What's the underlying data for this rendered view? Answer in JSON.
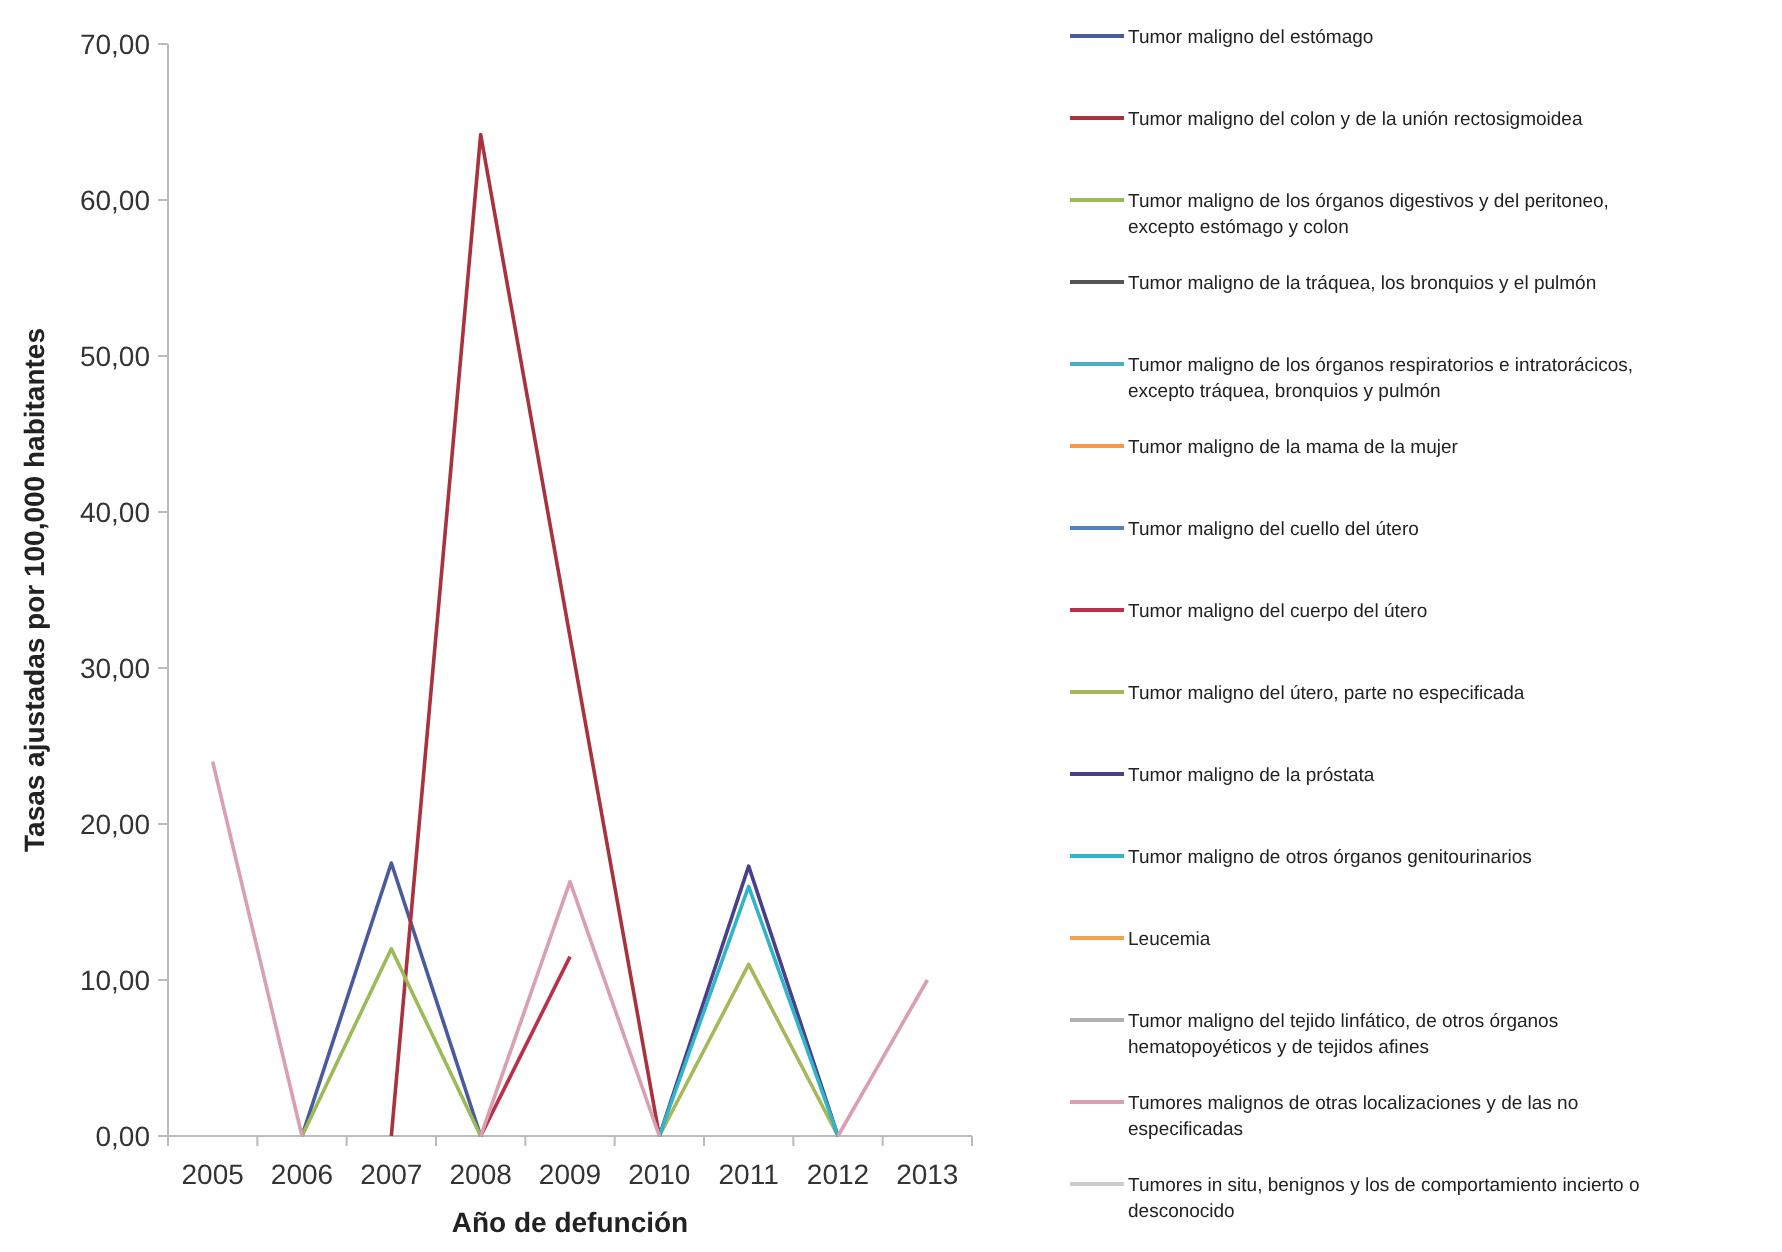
{
  "chart_data": {
    "type": "line",
    "xlabel": "Año de defunción",
    "ylabel": "Tasas ajustadas por 100,000 habitantes",
    "categories": [
      "2005",
      "2006",
      "2007",
      "2008",
      "2009",
      "2010",
      "2011",
      "2012",
      "2013"
    ],
    "ylim": [
      0,
      70
    ],
    "yticks": [
      {
        "value": 0,
        "label": "0,00"
      },
      {
        "value": 10,
        "label": "10,00"
      },
      {
        "value": 20,
        "label": "20,00"
      },
      {
        "value": 30,
        "label": "30,00"
      },
      {
        "value": 40,
        "label": "40,00"
      },
      {
        "value": 50,
        "label": "50,00"
      },
      {
        "value": 60,
        "label": "60,00"
      },
      {
        "value": 70,
        "label": "70,00"
      }
    ],
    "grid": false,
    "legend": "right",
    "marker": "none",
    "line_style": "solid",
    "series": [
      {
        "name": "Tumor maligno del estómago",
        "color": "#4a5a9c",
        "values": [
          null,
          0,
          17.5,
          0,
          null,
          null,
          null,
          null,
          null
        ]
      },
      {
        "name": "Tumor maligno del colon y de la unión rectosigmoidea",
        "color": "#a8323e",
        "values": [
          null,
          null,
          0,
          64.2,
          32,
          0,
          null,
          null,
          null
        ]
      },
      {
        "name": "Tumor maligno de los órganos digestivos y del peritoneo, excepto estómago y colon",
        "color": "#9bbb59",
        "values": [
          null,
          0,
          12,
          0,
          null,
          null,
          null,
          null,
          null
        ]
      },
      {
        "name": "Tumor maligno de la tráquea, los bronquios y el pulmón",
        "color": "#555555",
        "values": [
          null,
          null,
          null,
          null,
          null,
          null,
          null,
          null,
          null
        ]
      },
      {
        "name": "Tumor maligno de los órganos respiratorios e intratorácicos, excepto tráquea, bronquios y pulmón",
        "color": "#4bacc6",
        "values": [
          null,
          null,
          null,
          null,
          null,
          null,
          null,
          null,
          null
        ]
      },
      {
        "name": "Tumor maligno de la mama de la mujer",
        "color": "#f79646",
        "values": [
          null,
          null,
          null,
          null,
          null,
          null,
          null,
          null,
          null
        ]
      },
      {
        "name": "Tumor maligno del cuello del útero",
        "color": "#4f81bd",
        "values": [
          null,
          null,
          null,
          null,
          null,
          null,
          null,
          null,
          null
        ]
      },
      {
        "name": "Tumor maligno del cuerpo del útero",
        "color": "#b8304a",
        "values": [
          null,
          null,
          null,
          0,
          11.5,
          null,
          null,
          null,
          null
        ]
      },
      {
        "name": "Tumor maligno del útero, parte no especificada",
        "color": "#a5b85a",
        "values": [
          null,
          null,
          null,
          null,
          null,
          0,
          11,
          0,
          null
        ]
      },
      {
        "name": "Tumor maligno de la próstata",
        "color": "#4b3f8a",
        "values": [
          null,
          null,
          null,
          null,
          null,
          0,
          17.3,
          0,
          null
        ]
      },
      {
        "name": "Tumor maligno de otros órganos genitourinarios",
        "color": "#31b6c9",
        "values": [
          null,
          null,
          null,
          null,
          null,
          0,
          16,
          0,
          null
        ]
      },
      {
        "name": "Leucemia",
        "color": "#f5a050",
        "values": [
          null,
          null,
          null,
          null,
          null,
          null,
          null,
          null,
          null
        ]
      },
      {
        "name": "Tumor maligno del tejido linfático, de otros órganos hematopoyéticos y de tejidos afines",
        "color": "#b0b0b0",
        "values": [
          null,
          null,
          null,
          null,
          null,
          null,
          null,
          null,
          null
        ]
      },
      {
        "name": "Tumores malignos de otras localizaciones y de las no especificadas",
        "color": "#d9a0b0",
        "values": [
          24,
          0,
          null,
          0,
          16.3,
          0,
          null,
          0,
          10
        ]
      },
      {
        "name": "Tumores in situ, benignos y los de comportamiento incierto o desconocido",
        "color": "#cccccc",
        "values": [
          null,
          null,
          null,
          null,
          null,
          null,
          null,
          null,
          null
        ]
      }
    ]
  }
}
